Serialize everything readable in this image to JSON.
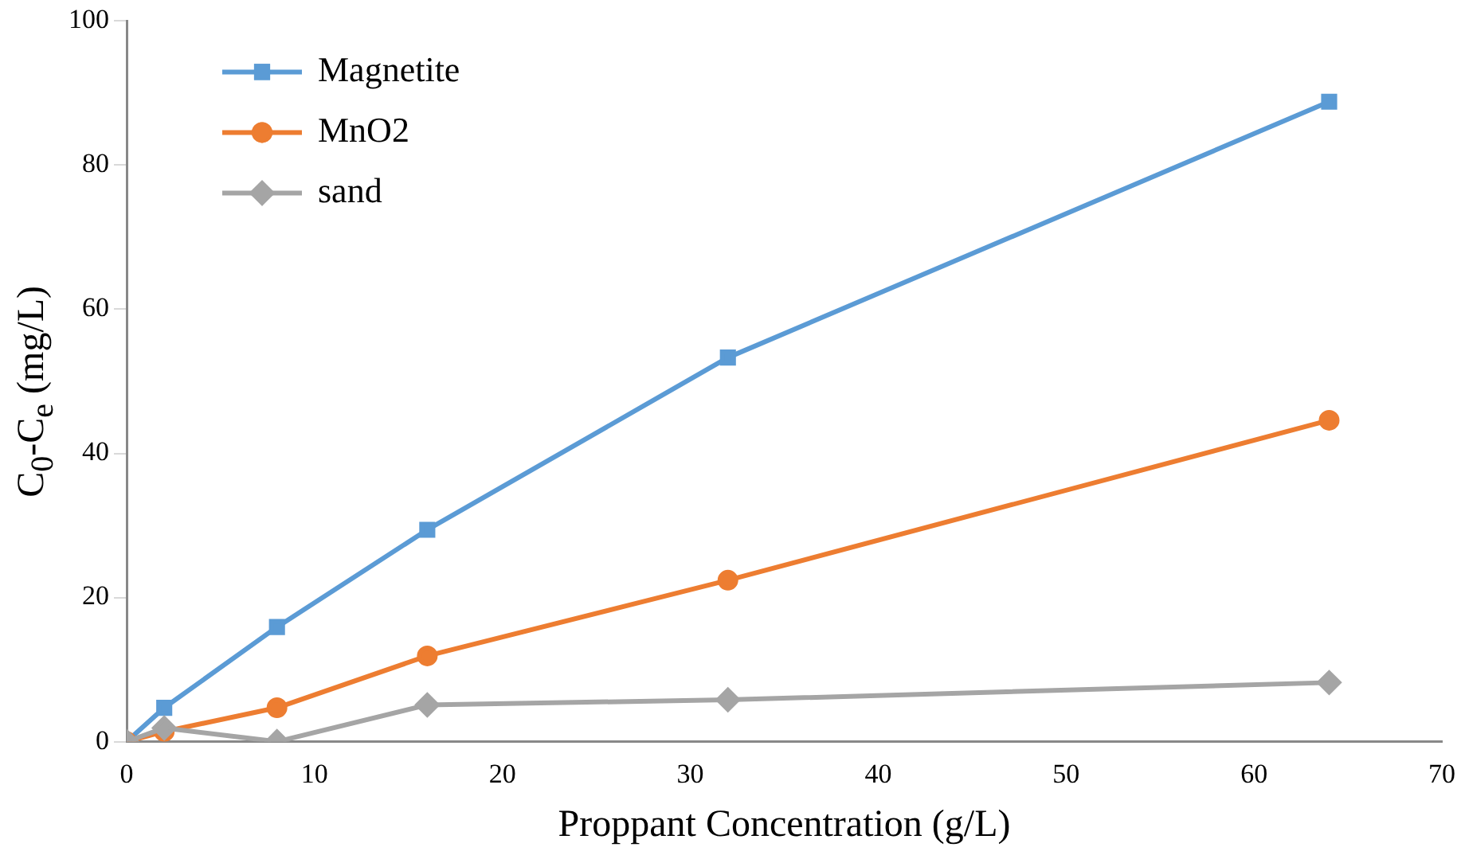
{
  "chart_data": {
    "type": "line",
    "xlabel": "Proppant Concentration (g/L)",
    "ylabel": "C$_{0}$-C$_{e}$ (mg/L)",
    "x": [
      0,
      2,
      8,
      16,
      32,
      64
    ],
    "series": [
      {
        "name": "Magnetite",
        "color": "#5b9bd5",
        "marker": "square",
        "values": [
          0,
          4.7,
          15.9,
          29.4,
          53.3,
          88.8
        ]
      },
      {
        "name": "MnO2",
        "color": "#ed7d31",
        "marker": "circle",
        "values": [
          0,
          1.4,
          4.7,
          11.9,
          22.4,
          44.6
        ]
      },
      {
        "name": "sand",
        "color": "#a5a5a5",
        "marker": "diamond",
        "values": [
          0,
          1.9,
          0,
          5.1,
          5.8,
          8.2
        ]
      }
    ],
    "xlim": [
      0,
      70
    ],
    "xticks": [
      0,
      10,
      20,
      30,
      40,
      50,
      60,
      70
    ],
    "ylim": [
      0,
      100
    ],
    "yticks": [
      0,
      20,
      40,
      60,
      80,
      100
    ],
    "grid": false,
    "legend": "top left",
    "line_style": "solid"
  }
}
